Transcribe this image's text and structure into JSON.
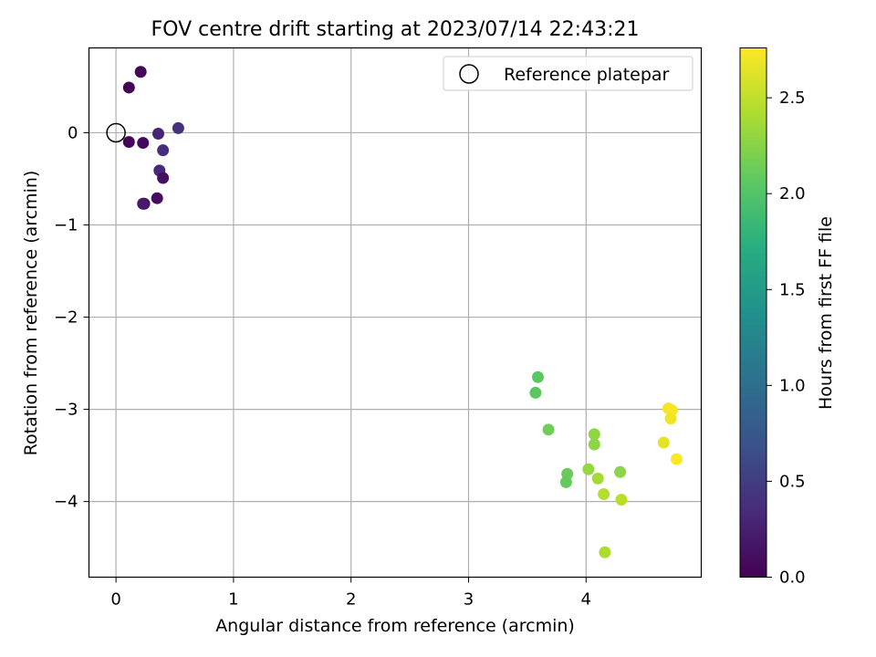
{
  "chart_data": {
    "type": "scatter",
    "title": "FOV centre drift starting at 2023/07/14 22:43:21",
    "xlabel": "Angular distance from reference (arcmin)",
    "ylabel": "Rotation from reference (arcmin)",
    "xlim": [
      -0.23,
      4.98
    ],
    "ylim": [
      -4.82,
      0.92
    ],
    "xticks": [
      "0",
      "1",
      "2",
      "3",
      "4"
    ],
    "yticks": [
      "0",
      "−1",
      "−2",
      "−3",
      "−4"
    ],
    "grid": true,
    "legend": {
      "position": "upper-right",
      "entries": [
        "Reference platepar"
      ]
    },
    "reference_point": {
      "x": 0,
      "y": 0
    },
    "colorbar": {
      "label": "Hours from first FF file",
      "colormap": "viridis",
      "range": [
        0.0,
        2.76
      ],
      "ticks": [
        "0.0",
        "0.5",
        "1.0",
        "1.5",
        "2.0",
        "2.5"
      ]
    },
    "points": [
      {
        "x": 0.21,
        "y": 0.66,
        "c": 0.05
      },
      {
        "x": 0.11,
        "y": 0.49,
        "c": 0.03
      },
      {
        "x": 0.11,
        "y": -0.1,
        "c": 0.04
      },
      {
        "x": 0.23,
        "y": -0.11,
        "c": 0.06
      },
      {
        "x": 0.36,
        "y": -0.01,
        "c": 0.28
      },
      {
        "x": 0.53,
        "y": 0.05,
        "c": 0.4
      },
      {
        "x": 0.4,
        "y": -0.19,
        "c": 0.36
      },
      {
        "x": 0.37,
        "y": -0.41,
        "c": 0.33
      },
      {
        "x": 0.4,
        "y": -0.49,
        "c": 0.12
      },
      {
        "x": 0.35,
        "y": -0.71,
        "c": 0.1
      },
      {
        "x": 0.24,
        "y": -0.77,
        "c": 0.09
      },
      {
        "x": 0.23,
        "y": -0.77,
        "c": 0.2
      },
      {
        "x": 3.59,
        "y": -2.65,
        "c": 2.05
      },
      {
        "x": 3.57,
        "y": -2.82,
        "c": 2.05
      },
      {
        "x": 3.68,
        "y": -3.22,
        "c": 2.15
      },
      {
        "x": 3.84,
        "y": -3.7,
        "c": 2.12
      },
      {
        "x": 3.83,
        "y": -3.79,
        "c": 2.1
      },
      {
        "x": 4.07,
        "y": -3.27,
        "c": 2.3
      },
      {
        "x": 4.07,
        "y": -3.38,
        "c": 2.28
      },
      {
        "x": 4.02,
        "y": -3.65,
        "c": 2.32
      },
      {
        "x": 4.1,
        "y": -3.75,
        "c": 2.38
      },
      {
        "x": 4.29,
        "y": -3.68,
        "c": 2.28
      },
      {
        "x": 4.15,
        "y": -3.92,
        "c": 2.45
      },
      {
        "x": 4.3,
        "y": -3.98,
        "c": 2.47
      },
      {
        "x": 4.16,
        "y": -4.55,
        "c": 2.42
      },
      {
        "x": 4.7,
        "y": -2.99,
        "c": 2.72
      },
      {
        "x": 4.73,
        "y": -3.01,
        "c": 2.74
      },
      {
        "x": 4.72,
        "y": -3.1,
        "c": 2.7
      },
      {
        "x": 4.66,
        "y": -3.36,
        "c": 2.65
      },
      {
        "x": 4.77,
        "y": -3.54,
        "c": 2.75
      }
    ]
  }
}
